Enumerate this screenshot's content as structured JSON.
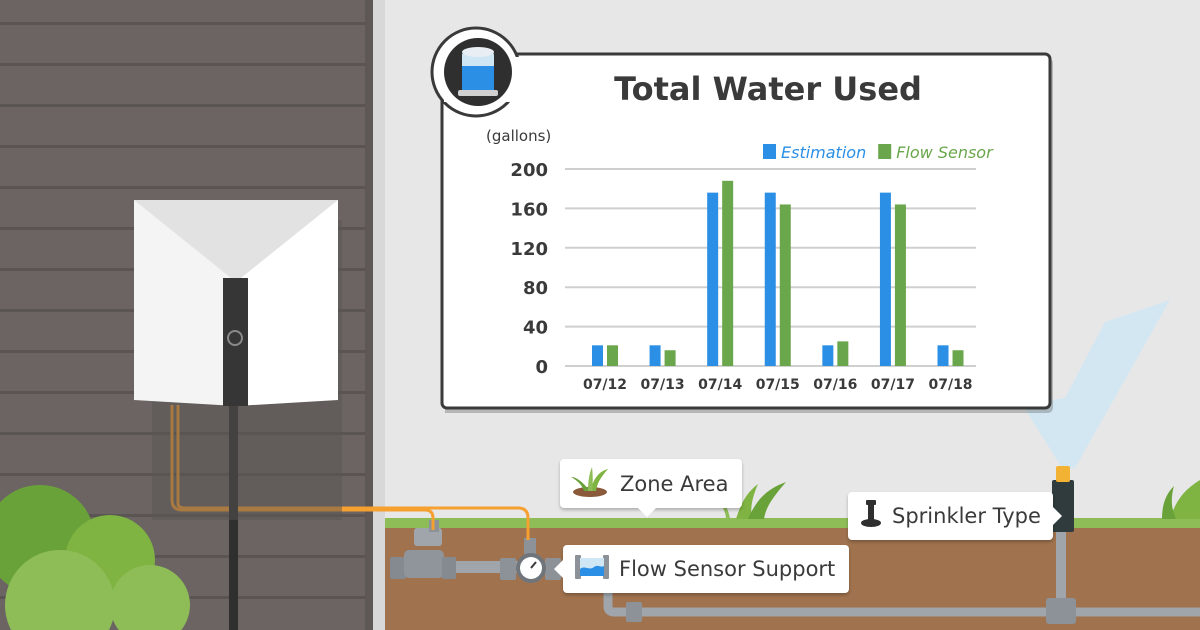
{
  "chart_data": {
    "type": "bar",
    "title": "Total Water Used",
    "unit_label": "(gallons)",
    "categories": [
      "07/12",
      "07/13",
      "07/14",
      "07/15",
      "07/16",
      "07/17",
      "07/18"
    ],
    "series": [
      {
        "name": "Estimation",
        "color": "#2b8fe6",
        "values": [
          21,
          21,
          176,
          176,
          21,
          176,
          21
        ]
      },
      {
        "name": "Flow Sensor",
        "color": "#6aa64b",
        "values": [
          21,
          16,
          188,
          164,
          25,
          164,
          16
        ]
      }
    ],
    "yticks": [
      "200",
      "160",
      "120",
      "80",
      "40",
      "0"
    ],
    "ylim": [
      0,
      200
    ],
    "grid": true,
    "legend_position": "top-right"
  },
  "callouts": {
    "zone": "Zone Area",
    "flow_sensor": "Flow Sensor Support",
    "sprinkler": "Sprinkler Type"
  },
  "colors": {
    "wall": "#6b6463",
    "background": "#e7e7e7",
    "soil": "#a0734e",
    "grass": "#8ebd58",
    "wire": "#f6a030",
    "pipe": "#9fa5ab",
    "chart_text": "#3a3a3a"
  },
  "icons": {
    "badge": "water-tank-icon",
    "zone": "plant-icon",
    "flow": "flow-sensor-icon",
    "sprinkler": "sprinkler-head-icon"
  }
}
